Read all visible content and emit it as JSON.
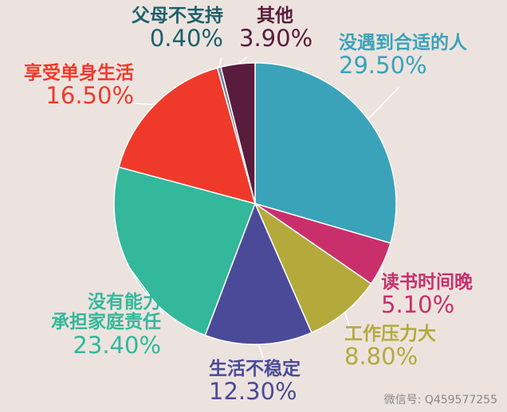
{
  "chart_data": {
    "type": "pie",
    "categories": [
      "没遇到合适的人",
      "读书时间晚",
      "工作压力大",
      "生活不稳定",
      "没有能力\n承担家庭责任",
      "享受单身生活",
      "父母不支持",
      "其他"
    ],
    "values": [
      29.5,
      5.1,
      8.8,
      12.3,
      23.4,
      16.5,
      0.4,
      3.9
    ],
    "value_labels": [
      "29.50%",
      "5.10%",
      "8.80%",
      "12.30%",
      "23.40%",
      "16.50%",
      "0.40%",
      "3.90%"
    ],
    "colors": [
      "#3aa3b9",
      "#c9306b",
      "#b3aa3b",
      "#4b4a98",
      "#33b89b",
      "#ef3a2b",
      "#6f7f9c",
      "#5a1c3c"
    ],
    "label_colors": [
      "#3aa3b9",
      "#c9306b",
      "#b3aa3b",
      "#4b4a98",
      "#33b89b",
      "#ef3a2b",
      "#1d5f6b",
      "#5a1c3c"
    ]
  },
  "watermark": "微信号: Q459577255"
}
